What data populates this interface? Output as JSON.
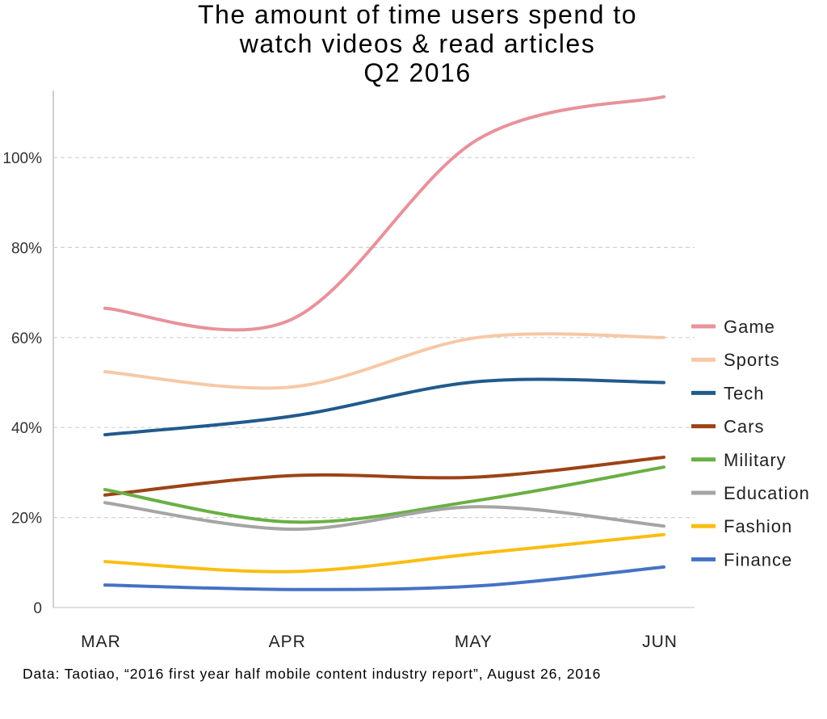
{
  "chart_data": {
    "type": "line",
    "title_lines": [
      "The amount of time users spend to",
      "watch videos & read articles",
      "Q2 2016"
    ],
    "categories": [
      "MAR",
      "APR",
      "MAY",
      "JUN"
    ],
    "y_ticks": [
      {
        "value": 0,
        "label": "0"
      },
      {
        "value": 20,
        "label": "20%"
      },
      {
        "value": 40,
        "label": "40%"
      },
      {
        "value": 60,
        "label": "60%"
      },
      {
        "value": 80,
        "label": "80%"
      },
      {
        "value": 100,
        "label": "100%"
      }
    ],
    "ylim": [
      0,
      115
    ],
    "grid": true,
    "legend_position": "right",
    "series": [
      {
        "name": "Game",
        "color": "#e8929b",
        "values": [
          66.5,
          64,
          104,
          113.5
        ]
      },
      {
        "name": "Sports",
        "color": "#f7c8a6",
        "values": [
          52.4,
          49,
          60,
          60
        ]
      },
      {
        "name": "Tech",
        "color": "#225a8c",
        "values": [
          38.4,
          42.5,
          50.2,
          50
        ]
      },
      {
        "name": "Cars",
        "color": "#9c4316",
        "values": [
          25,
          29.3,
          29,
          33.4
        ]
      },
      {
        "name": "Military",
        "color": "#6aaf45",
        "values": [
          26.2,
          19,
          23.8,
          31.2
        ]
      },
      {
        "name": "Education",
        "color": "#a5a5a5",
        "values": [
          23.3,
          17.4,
          22.4,
          18.1
        ]
      },
      {
        "name": "Fashion",
        "color": "#fbbd12",
        "values": [
          10.2,
          8,
          12,
          16.2
        ]
      },
      {
        "name": "Finance",
        "color": "#4472c4",
        "values": [
          5,
          4,
          4.8,
          9
        ]
      }
    ],
    "source": "Data: Taotiao, “2016 first year half mobile content industry report”, August 26, 2016"
  }
}
